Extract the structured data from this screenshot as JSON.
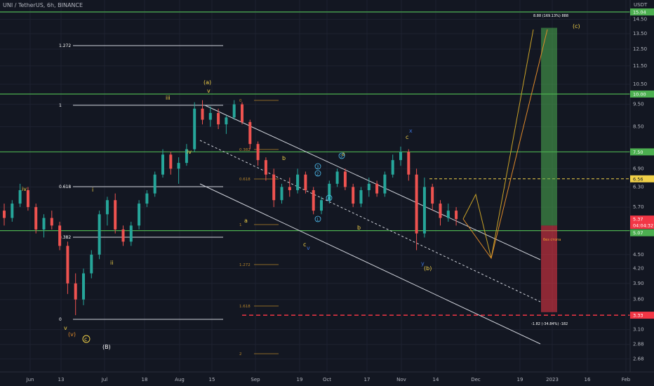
{
  "header": {
    "title": "UNI / TetherUS, 6h, BINANCE",
    "unit": "USDT"
  },
  "chart_data": {
    "type": "candlestick",
    "title": "UNI / TetherUS, 6h, BINANCE",
    "ylim": [
      2.6,
      15.2
    ],
    "y_scale": "log",
    "x_ticks": [
      "Jun",
      "13",
      "Jul",
      "18",
      "Aug",
      "15",
      "Sep",
      "19",
      "Oct",
      "17",
      "Nov",
      "14",
      "Dec",
      "19",
      "2023",
      "16",
      "Feb"
    ],
    "y_ticks": [
      "15.00",
      "14.50",
      "13.50",
      "12.50",
      "11.50",
      "10.50",
      "9.50",
      "8.50",
      "6.90",
      "6.30",
      "5.70",
      "4.50",
      "4.20",
      "3.90",
      "3.60",
      "3.10",
      "2.88",
      "2.68"
    ],
    "price_tags": [
      {
        "value": "15.04",
        "color": "#4caf50"
      },
      {
        "value": "10.00",
        "color": "#4caf50"
      },
      {
        "value": "7.50",
        "color": "#4caf50"
      },
      {
        "value": "6.56",
        "color": "#f0d048"
      },
      {
        "value": "5.37",
        "color": "#f23645"
      },
      {
        "value": "04:04:32",
        "color": "#f23645"
      },
      {
        "value": "5.07",
        "color": "#4caf50"
      },
      {
        "value": "3.33",
        "color": "#f23645"
      }
    ],
    "horizontal_levels": [
      15.04,
      10.0,
      7.5,
      5.07
    ],
    "dashed_levels": [
      {
        "value": 6.56,
        "color": "#f0d048"
      },
      {
        "value": 3.33,
        "color": "#f23645"
      }
    ],
    "fib_big": [
      "1.272",
      "1",
      "0.618",
      "0.382",
      "0"
    ],
    "fib_small": [
      "0",
      "0.382",
      "0.618",
      "1",
      "1.272",
      "1.618",
      "2"
    ],
    "position": {
      "target_label": "8.88 (169.13%) 888",
      "stop_label": "-1.82 (-34.84%) -182",
      "entry_label": "без стопа"
    },
    "wave_labels": [
      "iv",
      "i",
      "ii",
      "iii",
      "iv",
      "(a)",
      "v",
      "a",
      "b",
      "c",
      "a",
      "b",
      "c",
      "x",
      "y",
      "v",
      "(b)",
      "(c)",
      "v",
      "(v)",
      "c",
      "(B)",
      "1",
      "2",
      "3",
      "4",
      "5"
    ],
    "candles": [
      {
        "d": 0,
        "o": 5.6,
        "h": 5.8,
        "l": 5.2,
        "c": 5.4
      },
      {
        "d": 2,
        "o": 5.4,
        "h": 5.9,
        "l": 5.3,
        "c": 5.8
      },
      {
        "d": 4,
        "o": 5.8,
        "h": 6.4,
        "l": 5.7,
        "c": 6.2
      },
      {
        "d": 6,
        "o": 6.2,
        "h": 6.3,
        "l": 5.6,
        "c": 5.7
      },
      {
        "d": 8,
        "o": 5.7,
        "h": 5.8,
        "l": 5.0,
        "c": 5.1
      },
      {
        "d": 10,
        "o": 5.1,
        "h": 5.5,
        "l": 4.9,
        "c": 5.4
      },
      {
        "d": 12,
        "o": 5.4,
        "h": 5.6,
        "l": 5.1,
        "c": 5.2
      },
      {
        "d": 14,
        "o": 5.2,
        "h": 5.3,
        "l": 4.6,
        "c": 4.7
      },
      {
        "d": 16,
        "o": 4.7,
        "h": 4.8,
        "l": 3.7,
        "c": 3.9
      },
      {
        "d": 18,
        "o": 3.9,
        "h": 4.1,
        "l": 3.33,
        "c": 3.6
      },
      {
        "d": 20,
        "o": 3.6,
        "h": 4.2,
        "l": 3.5,
        "c": 4.1
      },
      {
        "d": 22,
        "o": 4.1,
        "h": 4.6,
        "l": 4.0,
        "c": 4.5
      },
      {
        "d": 24,
        "o": 4.5,
        "h": 5.6,
        "l": 4.4,
        "c": 5.5
      },
      {
        "d": 26,
        "o": 5.5,
        "h": 6.0,
        "l": 5.2,
        "c": 5.9
      },
      {
        "d": 28,
        "o": 5.9,
        "h": 6.1,
        "l": 5.0,
        "c": 5.1
      },
      {
        "d": 30,
        "o": 5.1,
        "h": 5.2,
        "l": 4.7,
        "c": 4.8
      },
      {
        "d": 32,
        "o": 4.8,
        "h": 5.3,
        "l": 4.7,
        "c": 5.2
      },
      {
        "d": 34,
        "o": 5.2,
        "h": 5.9,
        "l": 5.1,
        "c": 5.8
      },
      {
        "d": 36,
        "o": 5.8,
        "h": 6.2,
        "l": 5.7,
        "c": 6.1
      },
      {
        "d": 38,
        "o": 6.1,
        "h": 6.8,
        "l": 6.0,
        "c": 6.7
      },
      {
        "d": 40,
        "o": 6.7,
        "h": 7.6,
        "l": 6.6,
        "c": 7.4
      },
      {
        "d": 42,
        "o": 7.4,
        "h": 7.5,
        "l": 6.7,
        "c": 6.9
      },
      {
        "d": 44,
        "o": 6.9,
        "h": 7.3,
        "l": 6.4,
        "c": 7.1
      },
      {
        "d": 46,
        "o": 7.1,
        "h": 7.8,
        "l": 7.0,
        "c": 7.6
      },
      {
        "d": 48,
        "o": 7.6,
        "h": 9.6,
        "l": 7.5,
        "c": 9.3
      },
      {
        "d": 50,
        "o": 9.3,
        "h": 9.7,
        "l": 8.6,
        "c": 8.8
      },
      {
        "d": 52,
        "o": 8.8,
        "h": 9.4,
        "l": 8.5,
        "c": 9.1
      },
      {
        "d": 54,
        "o": 9.1,
        "h": 9.3,
        "l": 8.4,
        "c": 8.6
      },
      {
        "d": 56,
        "o": 8.6,
        "h": 9.0,
        "l": 8.2,
        "c": 8.9
      },
      {
        "d": 58,
        "o": 8.9,
        "h": 9.7,
        "l": 8.8,
        "c": 9.5
      },
      {
        "d": 60,
        "o": 9.5,
        "h": 9.6,
        "l": 8.6,
        "c": 8.7
      },
      {
        "d": 62,
        "o": 8.7,
        "h": 8.8,
        "l": 7.6,
        "c": 7.8
      },
      {
        "d": 64,
        "o": 7.8,
        "h": 7.9,
        "l": 7.0,
        "c": 7.2
      },
      {
        "d": 66,
        "o": 7.2,
        "h": 7.3,
        "l": 6.5,
        "c": 6.7
      },
      {
        "d": 68,
        "o": 6.7,
        "h": 6.9,
        "l": 5.7,
        "c": 5.9
      },
      {
        "d": 70,
        "o": 5.9,
        "h": 6.4,
        "l": 5.8,
        "c": 6.3
      },
      {
        "d": 72,
        "o": 6.3,
        "h": 6.6,
        "l": 6.0,
        "c": 6.2
      },
      {
        "d": 74,
        "o": 6.2,
        "h": 6.9,
        "l": 6.1,
        "c": 6.7
      },
      {
        "d": 76,
        "o": 6.7,
        "h": 6.8,
        "l": 6.1,
        "c": 6.2
      },
      {
        "d": 78,
        "o": 6.2,
        "h": 6.3,
        "l": 5.5,
        "c": 5.6
      },
      {
        "d": 80,
        "o": 5.6,
        "h": 6.0,
        "l": 5.5,
        "c": 5.9
      },
      {
        "d": 82,
        "o": 5.9,
        "h": 6.5,
        "l": 5.8,
        "c": 6.4
      },
      {
        "d": 84,
        "o": 6.4,
        "h": 6.9,
        "l": 6.3,
        "c": 6.8
      },
      {
        "d": 86,
        "o": 6.8,
        "h": 6.9,
        "l": 6.2,
        "c": 6.3
      },
      {
        "d": 88,
        "o": 6.3,
        "h": 6.4,
        "l": 5.7,
        "c": 5.8
      },
      {
        "d": 90,
        "o": 5.8,
        "h": 6.3,
        "l": 5.7,
        "c": 6.2
      },
      {
        "d": 92,
        "o": 6.2,
        "h": 6.6,
        "l": 6.0,
        "c": 6.4
      },
      {
        "d": 94,
        "o": 6.4,
        "h": 6.5,
        "l": 6.0,
        "c": 6.1
      },
      {
        "d": 96,
        "o": 6.1,
        "h": 6.8,
        "l": 6.0,
        "c": 6.7
      },
      {
        "d": 98,
        "o": 6.7,
        "h": 7.4,
        "l": 6.6,
        "c": 7.2
      },
      {
        "d": 100,
        "o": 7.2,
        "h": 7.7,
        "l": 7.0,
        "c": 7.5
      },
      {
        "d": 102,
        "o": 7.5,
        "h": 7.6,
        "l": 6.5,
        "c": 6.7
      },
      {
        "d": 104,
        "o": 6.7,
        "h": 6.9,
        "l": 4.6,
        "c": 5.0
      },
      {
        "d": 106,
        "o": 5.0,
        "h": 6.6,
        "l": 4.9,
        "c": 6.3
      },
      {
        "d": 108,
        "o": 6.3,
        "h": 6.4,
        "l": 5.6,
        "c": 5.8
      },
      {
        "d": 110,
        "o": 5.8,
        "h": 5.9,
        "l": 5.2,
        "c": 5.4
      },
      {
        "d": 112,
        "o": 5.4,
        "h": 5.8,
        "l": 5.3,
        "c": 5.6
      },
      {
        "d": 114,
        "o": 5.6,
        "h": 5.7,
        "l": 5.2,
        "c": 5.37
      }
    ]
  }
}
